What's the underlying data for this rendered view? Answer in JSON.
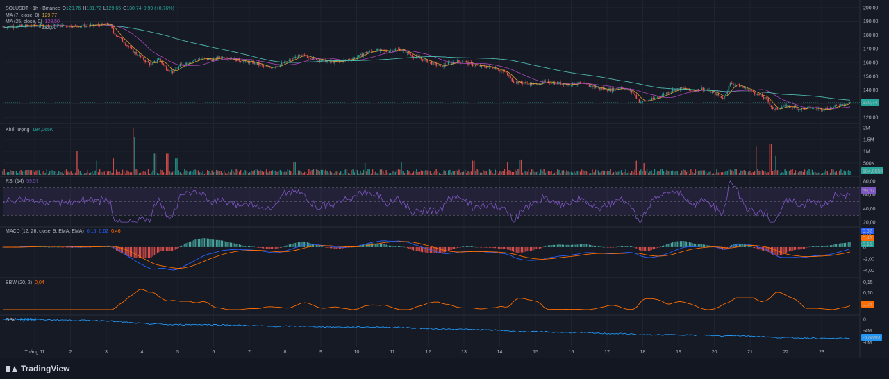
{
  "header": {
    "symbol": "SOLUSDT · 1h · Binance",
    "open_label": "O",
    "open": "129,76",
    "high_label": "H",
    "high": "131,72",
    "low_label": "L",
    "low": "129,65",
    "close_label": "C",
    "close": "130,74",
    "change": "0,99 (+0,76%)",
    "ma7_label": "MA (7, close, 0)",
    "ma7_value": "129,77",
    "ma25_label": "MA (25, close, 0)",
    "ma25_value": "128,50",
    "ma99_value": "132,00",
    "volume_label": "Khối lượng",
    "volume_value": "184,065K",
    "rsi_label": "RSI (14)",
    "rsi_value": "59,57",
    "macd_label": "MACD (12, 26, close, 9, EMA, EMA)",
    "macd_v1": "0,15",
    "macd_v2": "0,62",
    "macd_v3": "0,46",
    "bbw_label": "BBW (20, 2)",
    "bbw_value": "0,04",
    "obv_label": "OBV",
    "obv_value": "-6,009M"
  },
  "badges": {
    "price": "130,74",
    "volume": "184,065K",
    "rsi": "59,57",
    "macd_signal": "0,62",
    "macd_hist": "0,46",
    "macd_line": "0,15",
    "bbw": "0,04",
    "obv": "-6,009M"
  },
  "branding": {
    "logo_text": "TradingView"
  },
  "colors": {
    "background": "#161a25",
    "grid": "#252a36",
    "up": "#26a69a",
    "down": "#ef5350",
    "ma7": "#e0a135",
    "ma25": "#ab47bc",
    "ma99": "#4db6ac",
    "rsi": "#7e57c2",
    "macd": "#2962ff",
    "signal": "#ff6d00",
    "bbw": "#ff6d00",
    "obv": "#2196f3"
  },
  "chart_data": [
    {
      "type": "candlestick",
      "title": "SOLUSDT · 1h · Binance",
      "x_dates": [
        "Tháng 11",
        "2",
        "3",
        "4",
        "5",
        "6",
        "7",
        "8",
        "9",
        "10",
        "11",
        "12",
        "13",
        "14",
        "15",
        "16",
        "17",
        "18",
        "19",
        "20",
        "21",
        "22",
        "23"
      ],
      "y_ticks": [
        "200,00",
        "190,00",
        "180,00",
        "170,00",
        "160,00",
        "150,00",
        "140,00",
        "130,00",
        "120,00"
      ],
      "ylim": [
        117,
        203
      ],
      "close_path": [
        [
          0,
          186
        ],
        [
          1,
          187
        ],
        [
          2,
          186.5
        ],
        [
          2.5,
          187
        ],
        [
          2.95,
          188
        ],
        [
          3.05,
          182
        ],
        [
          3.3,
          176
        ],
        [
          3.6,
          168
        ],
        [
          3.9,
          162
        ],
        [
          4.1,
          158
        ],
        [
          4.3,
          163
        ],
        [
          4.5,
          156
        ],
        [
          4.7,
          153
        ],
        [
          4.9,
          158
        ],
        [
          5.2,
          161
        ],
        [
          5.5,
          163
        ],
        [
          5.8,
          162
        ],
        [
          6,
          164
        ],
        [
          6.3,
          163
        ],
        [
          6.6,
          161
        ],
        [
          6.9,
          160
        ],
        [
          7.1,
          158
        ],
        [
          7.3,
          156
        ],
        [
          7.6,
          158
        ],
        [
          7.9,
          161
        ],
        [
          8.1,
          164
        ],
        [
          8.3,
          165
        ],
        [
          8.6,
          163
        ],
        [
          8.9,
          161
        ],
        [
          9.2,
          160
        ],
        [
          9.5,
          162
        ],
        [
          9.8,
          164
        ],
        [
          10,
          167
        ],
        [
          10.3,
          169
        ],
        [
          10.6,
          168
        ],
        [
          10.9,
          170
        ],
        [
          11.1,
          168
        ],
        [
          11.3,
          165
        ],
        [
          11.6,
          162
        ],
        [
          11.9,
          159
        ],
        [
          12.1,
          157
        ],
        [
          12.4,
          160
        ],
        [
          12.7,
          161
        ],
        [
          13,
          158
        ],
        [
          13.3,
          157
        ],
        [
          13.6,
          156
        ],
        [
          13.9,
          152
        ],
        [
          14.1,
          146
        ],
        [
          14.4,
          145
        ],
        [
          14.7,
          144
        ],
        [
          15,
          146
        ],
        [
          15.3,
          145
        ],
        [
          15.6,
          144
        ],
        [
          15.9,
          145
        ],
        [
          16.2,
          143
        ],
        [
          16.5,
          141
        ],
        [
          16.8,
          140
        ],
        [
          17.1,
          142
        ],
        [
          17.4,
          138
        ],
        [
          17.6,
          131
        ],
        [
          17.9,
          133
        ],
        [
          18.2,
          136
        ],
        [
          18.5,
          140
        ],
        [
          18.8,
          141
        ],
        [
          19,
          139
        ],
        [
          19.3,
          141
        ],
        [
          19.6,
          138
        ],
        [
          19.9,
          134
        ],
        [
          20.1,
          145
        ],
        [
          20.3,
          143
        ],
        [
          20.6,
          140
        ],
        [
          20.9,
          136
        ],
        [
          21.1,
          133
        ],
        [
          21.3,
          125
        ],
        [
          21.5,
          128
        ],
        [
          21.8,
          128
        ],
        [
          22,
          126
        ],
        [
          22.3,
          127
        ],
        [
          22.6,
          126
        ],
        [
          22.9,
          127
        ],
        [
          23.1,
          129
        ],
        [
          23.3,
          130.7
        ]
      ],
      "ma_series": [
        "MA (7, close, 0)",
        "MA (25, close, 0)"
      ],
      "last_price": "130,74"
    },
    {
      "type": "bar",
      "title": "Khối lượng",
      "y_ticks": [
        "2M",
        "1,5M",
        "1M",
        "500K"
      ],
      "ylim": [
        0,
        2000000
      ],
      "spikes_mln": [
        [
          2.05,
          1.0
        ],
        [
          2.6,
          0.6
        ],
        [
          3.05,
          0.7
        ],
        [
          3.6,
          2.0
        ],
        [
          3.65,
          1.6
        ],
        [
          4.2,
          0.9
        ],
        [
          4.55,
          0.9
        ],
        [
          4.8,
          0.7
        ],
        [
          8.05,
          0.55
        ],
        [
          10,
          0.5
        ],
        [
          11,
          0.55
        ],
        [
          13,
          0.6
        ],
        [
          13.95,
          0.55
        ],
        [
          14.3,
          0.65
        ],
        [
          17.5,
          0.6
        ],
        [
          17.7,
          0.5
        ],
        [
          20.8,
          1.2
        ],
        [
          21.2,
          1.3
        ],
        [
          21.35,
          0.8
        ]
      ],
      "last_value": "184,065K"
    },
    {
      "type": "line",
      "title": "RSI (14)",
      "y_ticks": [
        "80,00",
        "60,00",
        "40,00",
        "20,00"
      ],
      "ylim": [
        15,
        85
      ],
      "bands": [
        30,
        70
      ],
      "last_value": "59,57"
    },
    {
      "type": "line_histogram",
      "title": "MACD (12, 26, close, 9, EMA, EMA)",
      "y_ticks": [
        "2,00",
        "0",
        "-2,00",
        "-4,00"
      ],
      "ylim": [
        -5,
        3.2
      ],
      "series": [
        {
          "name": "MACD",
          "value": "0,15"
        },
        {
          "name": "Signal",
          "value": "0,62"
        },
        {
          "name": "Histogram",
          "value": "0,46"
        }
      ]
    },
    {
      "type": "line",
      "title": "BBW (20, 2)",
      "y_ticks": [
        "0,15",
        "0,10"
      ],
      "ylim": [
        0,
        0.165
      ],
      "last_value": "0,04"
    },
    {
      "type": "line",
      "title": "OBV",
      "y_ticks": [
        "0",
        "-4M",
        "-8M"
      ],
      "ylim": [
        -9,
        1
      ],
      "last_value": "-6,009M"
    }
  ]
}
